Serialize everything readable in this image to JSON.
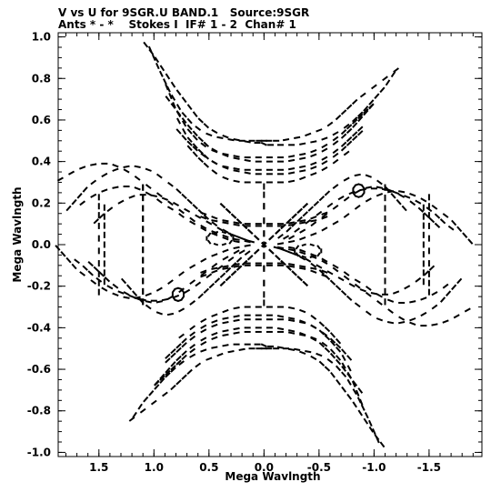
{
  "header": {
    "line1": "V vs U for 9SGR.U BAND.1   Source:9SGR",
    "line2": "Ants * - *    Stokes I  IF# 1 - 2  Chan# 1"
  },
  "chart_data": {
    "type": "scatter",
    "title": "V vs U for 9SGR.U BAND.1   Source:9SGR",
    "subtitle": "Ants * - *    Stokes I  IF# 1 - 2  Chan# 1",
    "xlabel": "Mega Wavlngth",
    "ylabel": "Mega Wavlngth",
    "xlim": [
      1.87,
      -1.98
    ],
    "ylim": [
      -1.02,
      1.02
    ],
    "x_reversed": true,
    "xticks": [
      1.5,
      1.0,
      0.5,
      0.0,
      -0.5,
      -1.0,
      -1.5
    ],
    "xtick_labels": [
      "1.5",
      "1.0",
      "0.5",
      "0.0",
      "-0.5",
      "-1.0",
      "-1.5"
    ],
    "yticks": [
      1.0,
      0.8,
      0.6,
      0.4,
      0.2,
      0.0,
      -0.2,
      -0.4,
      -0.6,
      -0.8,
      -1.0
    ],
    "ytick_labels": [
      "1.0",
      "0.8",
      "0.6",
      "0.4",
      "0.2",
      "0.0",
      "-0.2",
      "-0.4",
      "-0.6",
      "-0.8",
      "-1.0"
    ],
    "grid": false,
    "marker": "short dash",
    "color": "#000000",
    "tracks": [
      {
        "u": [
          1.05,
          0.95,
          0.85,
          0.75,
          0.65,
          0.55,
          0.45,
          0.35,
          0.25,
          0.15,
          0.07,
          0.02,
          -0.02,
          -0.07,
          -0.15,
          -0.25,
          -0.35,
          -0.45,
          -0.55,
          -0.65,
          -0.75,
          -0.85,
          -0.95,
          -1.05,
          -1.15,
          -1.25
        ],
        "v": [
          0.96,
          0.84,
          0.73,
          0.64,
          0.58,
          0.54,
          0.52,
          0.51,
          0.5,
          0.5,
          0.5,
          0.5,
          0.5,
          0.5,
          0.5,
          0.51,
          0.52,
          0.54,
          0.56,
          0.6,
          0.65,
          0.7,
          0.74,
          0.78,
          0.82,
          0.86
        ]
      },
      {
        "u": [
          0.9,
          0.8,
          0.7,
          0.6,
          0.5,
          0.4,
          0.3,
          0.2,
          0.1,
          0.0,
          -0.1,
          -0.2,
          -0.3,
          -0.4,
          -0.5,
          -0.6,
          -0.7,
          -0.8,
          -0.9,
          -1.0
        ],
        "v": [
          0.78,
          0.65,
          0.56,
          0.5,
          0.46,
          0.44,
          0.43,
          0.42,
          0.42,
          0.42,
          0.42,
          0.42,
          0.43,
          0.44,
          0.46,
          0.49,
          0.53,
          0.58,
          0.63,
          0.68
        ]
      },
      {
        "u": [
          0.8,
          0.7,
          0.6,
          0.5,
          0.4,
          0.3,
          0.2,
          0.1,
          0.0,
          -0.1,
          -0.2,
          -0.3,
          -0.4,
          -0.5,
          -0.6,
          -0.7,
          -0.8,
          -0.9
        ],
        "v": [
          0.62,
          0.52,
          0.46,
          0.41,
          0.38,
          0.37,
          0.36,
          0.36,
          0.36,
          0.36,
          0.36,
          0.37,
          0.38,
          0.4,
          0.43,
          0.47,
          0.52,
          0.57
        ]
      },
      {
        "u": [
          0.7,
          0.6,
          0.5,
          0.4,
          0.3,
          0.2,
          0.1,
          0.0,
          -0.1,
          -0.2,
          -0.3,
          -0.4,
          -0.5,
          -0.6,
          -0.7,
          -0.8
        ],
        "v": [
          0.48,
          0.42,
          0.37,
          0.33,
          0.31,
          0.3,
          0.3,
          0.3,
          0.3,
          0.3,
          0.31,
          0.33,
          0.35,
          0.38,
          0.42,
          0.46
        ]
      },
      {
        "u": [
          1.2,
          1.1,
          1.0,
          0.9,
          0.8,
          0.7,
          0.6,
          0.5,
          0.4,
          0.3,
          0.2,
          0.1,
          0.02,
          -0.02,
          -0.1,
          -0.2,
          -0.3,
          -0.4,
          -0.5,
          -0.6,
          -0.7,
          -0.8,
          -0.9,
          -1.0,
          -1.1
        ],
        "v": [
          -0.84,
          -0.76,
          -0.7,
          -0.64,
          -0.59,
          -0.55,
          -0.52,
          -0.5,
          -0.49,
          -0.48,
          -0.48,
          -0.48,
          -0.48,
          -0.49,
          -0.49,
          -0.5,
          -0.51,
          -0.53,
          -0.56,
          -0.61,
          -0.68,
          -0.75,
          -0.83,
          -0.91,
          -0.98
        ]
      },
      {
        "u": [
          1.0,
          0.9,
          0.8,
          0.7,
          0.6,
          0.5,
          0.4,
          0.3,
          0.2,
          0.1,
          0.0,
          -0.1,
          -0.2,
          -0.3,
          -0.4,
          -0.5,
          -0.6,
          -0.7,
          -0.8,
          -0.9
        ],
        "v": [
          -0.68,
          -0.62,
          -0.56,
          -0.51,
          -0.47,
          -0.44,
          -0.42,
          -0.41,
          -0.4,
          -0.4,
          -0.4,
          -0.4,
          -0.41,
          -0.42,
          -0.44,
          -0.47,
          -0.52,
          -0.58,
          -0.65,
          -0.72
        ]
      },
      {
        "u": [
          0.9,
          0.8,
          0.7,
          0.6,
          0.5,
          0.4,
          0.3,
          0.2,
          0.1,
          0.0,
          -0.1,
          -0.2,
          -0.3,
          -0.4,
          -0.5,
          -0.6,
          -0.7,
          -0.8
        ],
        "v": [
          -0.55,
          -0.5,
          -0.45,
          -0.41,
          -0.38,
          -0.36,
          -0.35,
          -0.34,
          -0.34,
          -0.34,
          -0.34,
          -0.35,
          -0.36,
          -0.38,
          -0.41,
          -0.45,
          -0.5,
          -0.56
        ]
      },
      {
        "u": [
          1.8,
          1.7,
          1.6,
          1.5,
          1.4,
          1.3,
          1.2,
          1.1,
          1.0,
          0.9,
          0.8,
          0.7,
          0.6,
          0.5,
          0.4,
          0.3,
          0.2,
          0.1
        ],
        "v": [
          0.16,
          0.22,
          0.28,
          0.32,
          0.35,
          0.37,
          0.38,
          0.37,
          0.35,
          0.31,
          0.27,
          0.22,
          0.17,
          0.12,
          0.08,
          0.05,
          0.03,
          0.01
        ]
      },
      {
        "u": [
          1.55,
          1.45,
          1.35,
          1.25,
          1.15,
          1.05,
          0.95,
          0.85,
          0.75,
          0.65,
          0.55,
          0.45,
          0.35,
          0.25,
          0.15,
          0.08
        ],
        "v": [
          0.1,
          0.15,
          0.19,
          0.22,
          0.24,
          0.24,
          0.23,
          0.21,
          0.18,
          0.15,
          0.12,
          0.09,
          0.06,
          0.04,
          0.02,
          0.01
        ]
      },
      {
        "u": [
          1.75,
          1.65,
          1.55,
          1.45,
          1.35,
          1.25,
          1.15,
          1.05,
          0.95,
          0.85,
          0.75,
          0.65,
          0.55,
          0.45,
          0.35,
          0.25,
          0.15
        ],
        "v": [
          -0.06,
          -0.1,
          -0.15,
          -0.19,
          -0.22,
          -0.24,
          -0.26,
          -0.27,
          -0.27,
          -0.26,
          -0.24,
          -0.21,
          -0.17,
          -0.13,
          -0.09,
          -0.05,
          -0.02
        ]
      },
      {
        "u": [
          1.3,
          1.2,
          1.1,
          1.0,
          0.9,
          0.8,
          0.7,
          0.6,
          0.5,
          0.4,
          0.3,
          0.2,
          0.1
        ],
        "v": [
          -0.16,
          -0.22,
          -0.28,
          -0.32,
          -0.34,
          -0.33,
          -0.3,
          -0.26,
          -0.21,
          -0.16,
          -0.11,
          -0.06,
          -0.02
        ]
      },
      {
        "u": [
          -1.9,
          -1.8,
          -1.7,
          -1.6,
          -1.5,
          -1.4,
          -1.3,
          -1.2,
          -1.1,
          -1.0,
          -0.9,
          -0.8,
          -0.7,
          -0.6,
          -0.5,
          -0.4,
          -0.3,
          -0.2,
          -0.1
        ],
        "v": [
          -0.3,
          -0.33,
          -0.36,
          -0.38,
          -0.39,
          -0.39,
          -0.37,
          -0.34,
          -0.3,
          -0.26,
          -0.22,
          -0.18,
          -0.14,
          -0.1,
          -0.07,
          -0.05,
          -0.03,
          -0.02,
          -0.01
        ]
      },
      {
        "u": [
          -1.7,
          -1.6,
          -1.5,
          -1.4,
          -1.3,
          -1.2,
          -1.1,
          -1.0,
          -0.9,
          -0.8,
          -0.7,
          -0.6,
          -0.5,
          -0.4,
          -0.3,
          -0.2
        ],
        "v": [
          -0.18,
          -0.22,
          -0.25,
          -0.27,
          -0.28,
          -0.28,
          -0.26,
          -0.23,
          -0.19,
          -0.16,
          -0.12,
          -0.09,
          -0.06,
          -0.04,
          -0.02,
          -0.01
        ]
      },
      {
        "u": [
          -1.9,
          -1.8,
          -1.7,
          -1.6,
          -1.5,
          -1.4,
          -1.3,
          -1.2,
          -1.1,
          -1.0,
          -0.9,
          -0.8,
          -0.7,
          -0.6,
          -0.5,
          -0.4,
          -0.3,
          -0.2,
          -0.1
        ],
        "v": [
          0.0,
          0.06,
          0.12,
          0.16,
          0.2,
          0.23,
          0.25,
          0.26,
          0.25,
          0.23,
          0.2,
          0.16,
          0.12,
          0.09,
          0.06,
          0.04,
          0.02,
          0.01,
          0.0
        ]
      },
      {
        "u": [
          -1.6,
          -1.5,
          -1.4,
          -1.3,
          -1.2,
          -1.1,
          -1.0,
          -0.9,
          -0.8,
          -0.7,
          -0.6,
          -0.5,
          -0.4,
          -0.3,
          -0.2
        ],
        "v": [
          0.08,
          0.13,
          0.18,
          0.22,
          0.25,
          0.27,
          0.28,
          0.27,
          0.24,
          0.2,
          0.16,
          0.12,
          0.08,
          0.05,
          0.02
        ]
      },
      {
        "u": [
          0.6,
          0.5,
          0.4,
          0.3,
          0.2,
          0.1,
          0.0,
          -0.1,
          -0.2,
          -0.3,
          -0.4,
          -0.5,
          -0.6
        ],
        "v": [
          0.16,
          0.14,
          0.12,
          0.11,
          0.1,
          0.1,
          0.1,
          0.1,
          0.1,
          0.11,
          0.12,
          0.14,
          0.16
        ]
      },
      {
        "u": [
          0.6,
          0.5,
          0.4,
          0.3,
          0.2,
          0.1,
          0.0,
          -0.1,
          -0.2,
          -0.3,
          -0.4,
          -0.5,
          -0.6
        ],
        "v": [
          -0.14,
          -0.12,
          -0.11,
          -0.1,
          -0.09,
          -0.09,
          -0.09,
          -0.09,
          -0.09,
          -0.1,
          -0.11,
          -0.12,
          -0.14
        ]
      },
      {
        "u": [
          0.0,
          0.0,
          0.0,
          0.0,
          0.0,
          0.0,
          0.0
        ],
        "v": [
          0.3,
          0.22,
          0.15,
          0.08,
          -0.08,
          -0.15,
          -0.22
        ]
      },
      {
        "u": [
          0.4,
          0.3,
          0.2,
          0.1,
          -0.1,
          -0.2,
          -0.3,
          -0.4
        ],
        "v": [
          0.2,
          0.15,
          0.1,
          0.05,
          -0.05,
          -0.1,
          -0.15,
          -0.2
        ]
      },
      {
        "u": [
          0.4,
          0.3,
          0.2,
          0.1,
          -0.1,
          -0.2,
          -0.3,
          -0.4
        ],
        "v": [
          -0.2,
          -0.15,
          -0.1,
          -0.05,
          0.05,
          0.1,
          0.15,
          0.2
        ]
      },
      {
        "u": [
          1.1,
          1.1,
          1.1,
          1.1,
          1.1,
          1.1,
          1.1
        ],
        "v": [
          0.3,
          0.2,
          0.1,
          0.0,
          -0.1,
          -0.2,
          -0.3
        ]
      },
      {
        "u": [
          -1.1,
          -1.1,
          -1.1,
          -1.1,
          -1.1,
          -1.1,
          -1.1
        ],
        "v": [
          0.3,
          0.2,
          0.1,
          0.0,
          -0.1,
          -0.2,
          -0.3
        ]
      },
      {
        "u": [
          -1.5,
          -1.5,
          -1.5,
          -1.5,
          -1.5
        ],
        "v": [
          0.25,
          0.12,
          0.0,
          -0.12,
          -0.25
        ]
      },
      {
        "u": [
          1.45,
          1.45,
          1.45,
          1.45
        ],
        "v": [
          0.2,
          0.07,
          -0.07,
          -0.2
        ]
      }
    ],
    "loops": [
      {
        "u": 0.78,
        "v": -0.24,
        "rx": 0.05,
        "ry": 0.03
      },
      {
        "u": -0.86,
        "v": 0.26,
        "rx": 0.05,
        "ry": 0.03
      },
      {
        "u": 0.4,
        "v": 0.03,
        "rx": 0.12,
        "ry": 0.03
      },
      {
        "u": -0.4,
        "v": -0.03,
        "rx": 0.12,
        "ry": 0.03
      }
    ]
  }
}
